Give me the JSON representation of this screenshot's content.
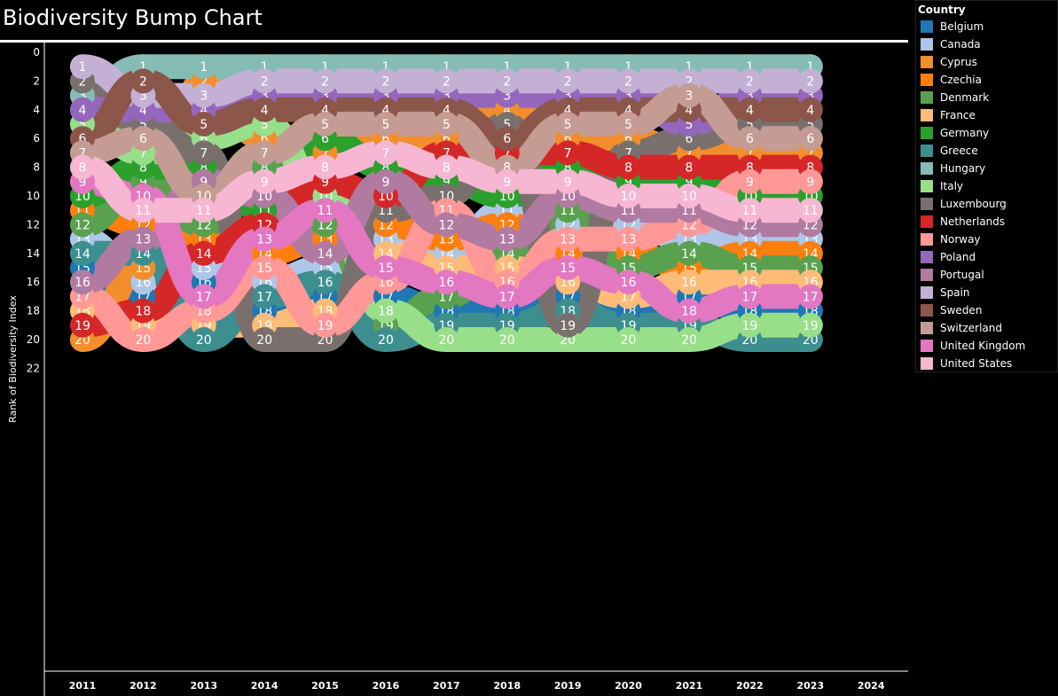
{
  "title": "Biodiversity Bump Chart",
  "legend": {
    "title": "Country"
  },
  "colors": {
    "Belgium": "#1f77b4",
    "Canada": "#aec7e8",
    "Cyprus": "#f28e2b",
    "Czechia": "#ff7f0e",
    "Denmark": "#59a14f",
    "France": "#ffbb78",
    "Germany": "#2ca02c",
    "Greece": "#3d8f8f",
    "Hungary": "#86bcb6",
    "Italy": "#98df8a",
    "Luxembourg": "#79706e",
    "Netherlands": "#d62728",
    "Norway": "#ff9896",
    "Poland": "#9467bd",
    "Portugal": "#b07aa1",
    "Spain": "#c5b0d5",
    "Sweden": "#8c564b",
    "Switzerland": "#c49c94",
    "United Kingdom": "#e377c2",
    "United States": "#f7b6d2"
  },
  "chart_data": {
    "type": "line",
    "title": "Biodiversity Bump Chart",
    "xlabel": "",
    "ylabel": "Rank of Biodiversity Index",
    "x": [
      2011,
      2012,
      2013,
      2014,
      2015,
      2016,
      2017,
      2018,
      2019,
      2020,
      2021,
      2022,
      2023
    ],
    "x_ticks": [
      2011,
      2012,
      2013,
      2014,
      2015,
      2016,
      2017,
      2018,
      2019,
      2020,
      2021,
      2022,
      2023,
      2024
    ],
    "y_ticks": [
      0,
      2,
      4,
      6,
      8,
      10,
      12,
      14,
      16,
      18,
      20,
      22
    ],
    "ylim": [
      0,
      22
    ],
    "y_reversed": true,
    "legend_position": "right",
    "series": [
      {
        "name": "Belgium",
        "values": [
          15,
          17,
          16,
          18,
          17,
          17,
          18,
          18,
          17,
          18,
          17,
          18,
          18
        ]
      },
      {
        "name": "Canada",
        "values": [
          13,
          16,
          15,
          16,
          15,
          13,
          14,
          11,
          12,
          12,
          13,
          13,
          13
        ]
      },
      {
        "name": "Cyprus",
        "values": [
          20,
          15,
          2,
          6,
          7,
          6,
          6,
          4,
          6,
          6,
          7,
          7,
          7
        ]
      },
      {
        "name": "Czechia",
        "values": [
          11,
          12,
          13,
          14,
          13,
          12,
          13,
          12,
          14,
          14,
          15,
          14,
          14
        ]
      },
      {
        "name": "Denmark",
        "values": [
          12,
          9,
          12,
          8,
          12,
          19,
          17,
          14,
          11,
          15,
          14,
          15,
          15
        ]
      },
      {
        "name": "France",
        "values": [
          18,
          19,
          19,
          19,
          18,
          14,
          15,
          15,
          16,
          17,
          16,
          16,
          16
        ]
      },
      {
        "name": "Germany",
        "values": [
          10,
          8,
          8,
          11,
          6,
          8,
          9,
          10,
          8,
          9,
          9,
          10,
          10
        ]
      },
      {
        "name": "Greece",
        "values": [
          14,
          14,
          20,
          17,
          16,
          20,
          19,
          19,
          18,
          19,
          19,
          20,
          20
        ]
      },
      {
        "name": "Hungary",
        "values": [
          3,
          1,
          1,
          1,
          1,
          1,
          1,
          1,
          1,
          1,
          1,
          1,
          1
        ]
      },
      {
        "name": "Italy",
        "values": [
          5,
          7,
          6,
          5,
          10,
          18,
          20,
          20,
          20,
          20,
          20,
          19,
          19
        ]
      },
      {
        "name": "Luxembourg",
        "values": [
          2,
          5,
          7,
          20,
          20,
          11,
          10,
          5,
          19,
          7,
          6,
          5,
          5
        ]
      },
      {
        "name": "Netherlands",
        "values": [
          19,
          18,
          14,
          12,
          9,
          10,
          7,
          7,
          7,
          8,
          8,
          8,
          8
        ]
      },
      {
        "name": "Norway",
        "values": [
          17,
          20,
          18,
          15,
          19,
          16,
          11,
          16,
          13,
          13,
          12,
          9,
          9
        ]
      },
      {
        "name": "Poland",
        "values": [
          4,
          4,
          4,
          3,
          3,
          3,
          3,
          3,
          3,
          3,
          5,
          3,
          3
        ]
      },
      {
        "name": "Portugal",
        "values": [
          16,
          13,
          9,
          10,
          14,
          9,
          12,
          13,
          10,
          11,
          11,
          12,
          12
        ]
      },
      {
        "name": "Spain",
        "values": [
          1,
          3,
          3,
          2,
          2,
          2,
          2,
          2,
          2,
          2,
          2,
          2,
          2
        ]
      },
      {
        "name": "Sweden",
        "values": [
          6,
          2,
          5,
          4,
          4,
          4,
          4,
          6,
          4,
          4,
          4,
          4,
          4
        ]
      },
      {
        "name": "Switzerland",
        "values": [
          7,
          6,
          10,
          7,
          5,
          5,
          5,
          8,
          5,
          5,
          3,
          6,
          6
        ]
      },
      {
        "name": "United Kingdom",
        "values": [
          9,
          10,
          17,
          13,
          11,
          15,
          16,
          17,
          15,
          16,
          18,
          17,
          17
        ]
      },
      {
        "name": "United States",
        "values": [
          8,
          11,
          11,
          9,
          8,
          7,
          8,
          9,
          9,
          10,
          10,
          11,
          11
        ]
      }
    ]
  }
}
